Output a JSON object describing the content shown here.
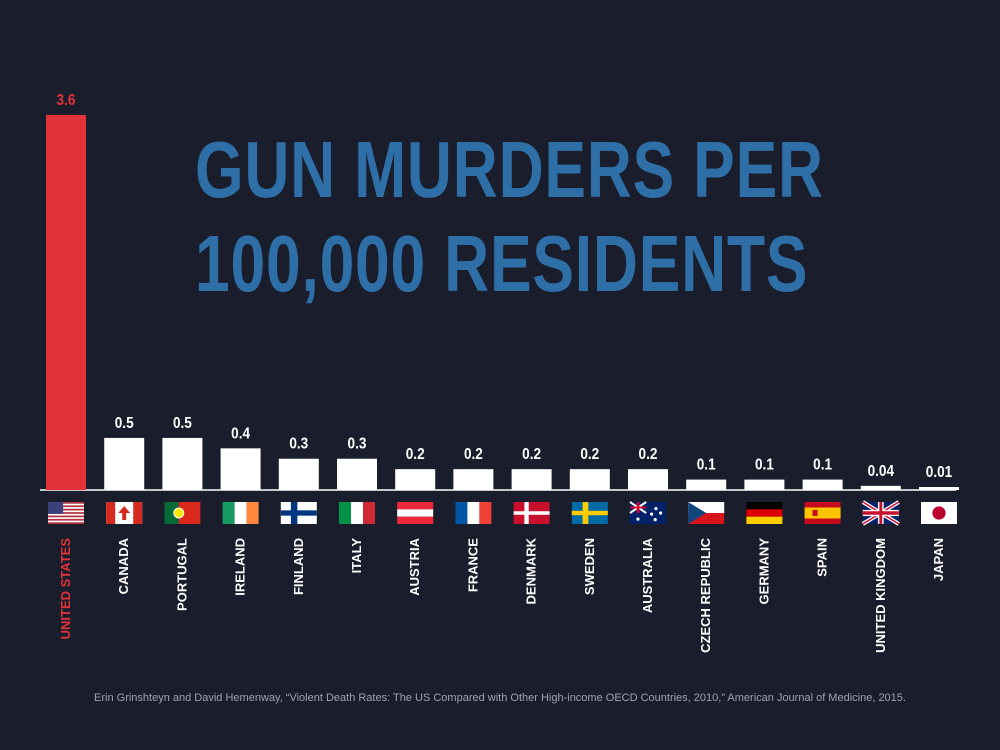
{
  "chart_data": {
    "type": "bar",
    "title_lines": [
      "GUN MURDERS PER",
      "100,000 RESIDENTS"
    ],
    "categories": [
      "UNITED STATES",
      "CANADA",
      "PORTUGAL",
      "IRELAND",
      "FINLAND",
      "ITALY",
      "AUSTRIA",
      "FRANCE",
      "DENMARK",
      "SWEDEN",
      "AUSTRALIA",
      "CZECH REPUBLIC",
      "GERMANY",
      "SPAIN",
      "UNITED KINGDOM",
      "JAPAN"
    ],
    "flags": [
      "us-flag",
      "canada-flag",
      "portugal-flag",
      "ireland-flag",
      "finland-flag",
      "italy-flag",
      "austria-flag",
      "france-flag",
      "denmark-flag",
      "sweden-flag",
      "australia-flag",
      "czech-flag",
      "germany-flag",
      "spain-flag",
      "uk-flag",
      "japan-flag"
    ],
    "values": [
      3.6,
      0.5,
      0.5,
      0.4,
      0.3,
      0.3,
      0.2,
      0.2,
      0.2,
      0.2,
      0.2,
      0.1,
      0.1,
      0.1,
      0.04,
      0.01
    ],
    "value_labels": [
      "3.6",
      "0.5",
      "0.5",
      "0.4",
      "0.3",
      "0.3",
      "0.2",
      "0.2",
      "0.2",
      "0.2",
      "0.2",
      "0.1",
      "0.1",
      "0.1",
      "0.04",
      "0.01"
    ],
    "highlight_index": 0,
    "ylim": [
      0,
      3.6
    ],
    "xlabel": "",
    "ylabel": "",
    "source": "Erin Grinshteyn and David Hemenway, “Violent Death Rates: The US Compared with Other High-income OECD Countries, 2010,” American Journal of Medicine, 2015."
  },
  "colors": {
    "background": "#1a1d2b",
    "title": "#2f6fa8",
    "highlight": "#e3333a",
    "bar": "#ffffff",
    "source": "#9ea3b3"
  }
}
